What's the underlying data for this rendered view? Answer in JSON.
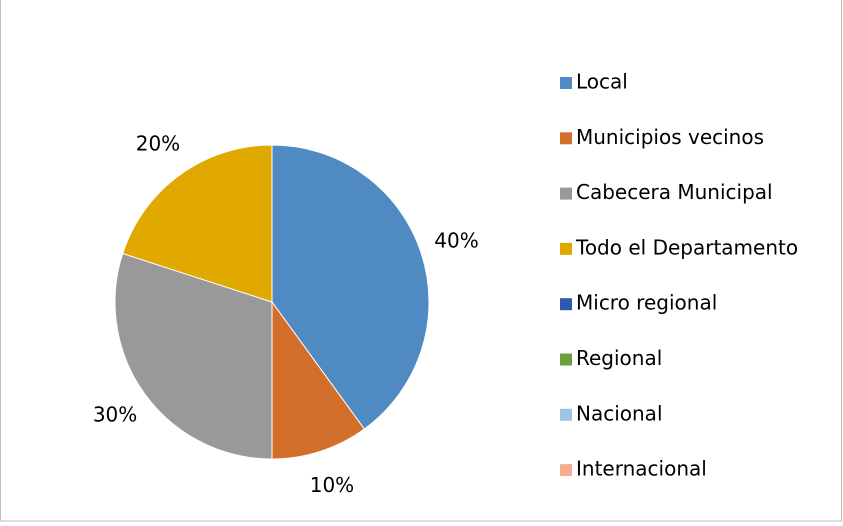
{
  "chart_data": {
    "type": "pie",
    "categories": [
      "Local",
      "Municipios vecinos",
      "Cabecera Municipal",
      "Todo el Departamento",
      "Micro regional",
      "Regional",
      "Nacional",
      "Internacional"
    ],
    "values": [
      40,
      10,
      30,
      20,
      0,
      0,
      0,
      0
    ],
    "value_labels": [
      "40%",
      "10%",
      "30%",
      "20%",
      null,
      null,
      null,
      null
    ],
    "colors": [
      "#508ac3",
      "#d46f2b",
      "#999999",
      "#e1a800",
      "#2e5aac",
      "#6aa040",
      "#9dc3e6",
      "#f4ae8e"
    ],
    "legend": "right"
  }
}
